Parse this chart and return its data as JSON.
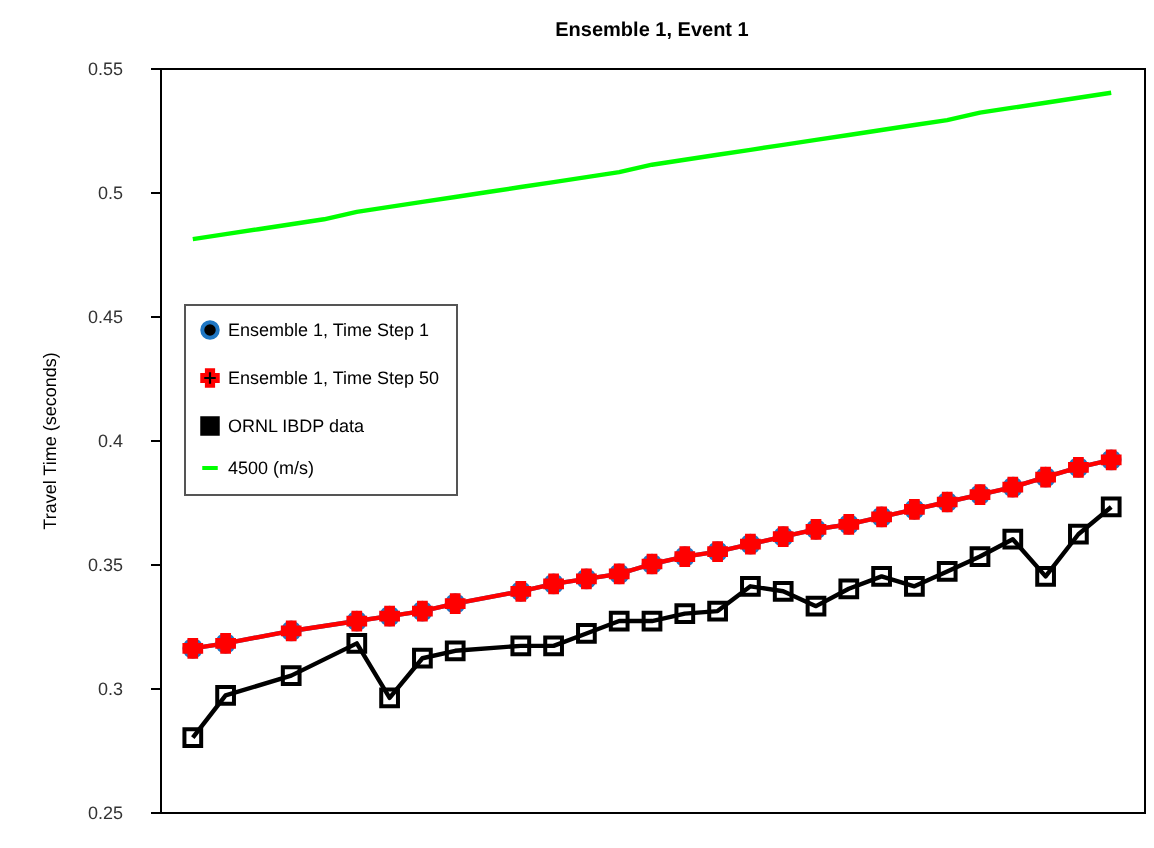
{
  "chart_data": {
    "type": "line",
    "title": "Ensemble 1, Event 1",
    "ylabel": "Travel Time (seconds)",
    "categories": [
      null,
      null,
      null,
      null,
      null,
      null,
      null,
      null,
      null,
      null,
      null,
      null,
      null,
      null,
      null,
      null,
      null,
      null,
      null,
      null,
      null,
      null,
      null,
      null,
      null,
      null,
      null,
      null,
      null
    ],
    "ylim": [
      0.25,
      0.55
    ],
    "yticks": [
      0.25,
      0.3,
      0.35,
      0.4,
      0.45,
      0.5,
      0.55
    ],
    "grid": false,
    "legend": "left",
    "line_style": "solid",
    "series": [
      {
        "name": "Ensemble 1, Time Step 1",
        "color": "#1f77c4",
        "marker": "circle",
        "values": [
          0.316,
          0.318,
          null,
          0.323,
          null,
          0.327,
          0.329,
          0.331,
          0.334,
          null,
          0.339,
          0.342,
          0.344,
          0.346,
          0.35,
          0.353,
          0.355,
          0.358,
          0.361,
          0.364,
          0.366,
          0.369,
          0.372,
          0.375,
          0.378,
          0.381,
          0.385,
          0.389,
          0.392
        ]
      },
      {
        "name": "Ensemble 1, Time Step 50",
        "color": "#ff0000",
        "marker": "cross",
        "values": [
          0.316,
          0.318,
          null,
          0.323,
          null,
          0.327,
          0.329,
          0.331,
          0.334,
          null,
          0.339,
          0.342,
          0.344,
          0.346,
          0.35,
          0.353,
          0.355,
          0.358,
          0.361,
          0.364,
          0.366,
          0.369,
          0.372,
          0.375,
          0.378,
          0.381,
          0.385,
          0.389,
          0.392
        ]
      },
      {
        "name": "ORNL IBDP data",
        "color": "#000000",
        "marker": "square",
        "values": [
          0.28,
          0.297,
          null,
          0.305,
          null,
          0.318,
          0.296,
          0.312,
          0.315,
          null,
          0.317,
          0.317,
          0.322,
          0.327,
          0.327,
          0.33,
          0.331,
          0.341,
          0.339,
          0.333,
          0.34,
          0.345,
          0.341,
          0.347,
          0.353,
          0.36,
          0.345,
          0.362,
          0.373
        ]
      },
      {
        "name": "4500 (m/s)",
        "color": "#00ff00",
        "marker": "none",
        "values": [
          0.481,
          0.483,
          0.485,
          0.487,
          0.489,
          0.492,
          0.494,
          0.496,
          0.498,
          0.5,
          0.502,
          0.504,
          0.506,
          0.508,
          0.511,
          0.513,
          0.515,
          0.517,
          0.519,
          0.521,
          0.523,
          0.525,
          0.527,
          0.529,
          0.532,
          0.534,
          0.536,
          0.538,
          0.54
        ]
      }
    ]
  }
}
